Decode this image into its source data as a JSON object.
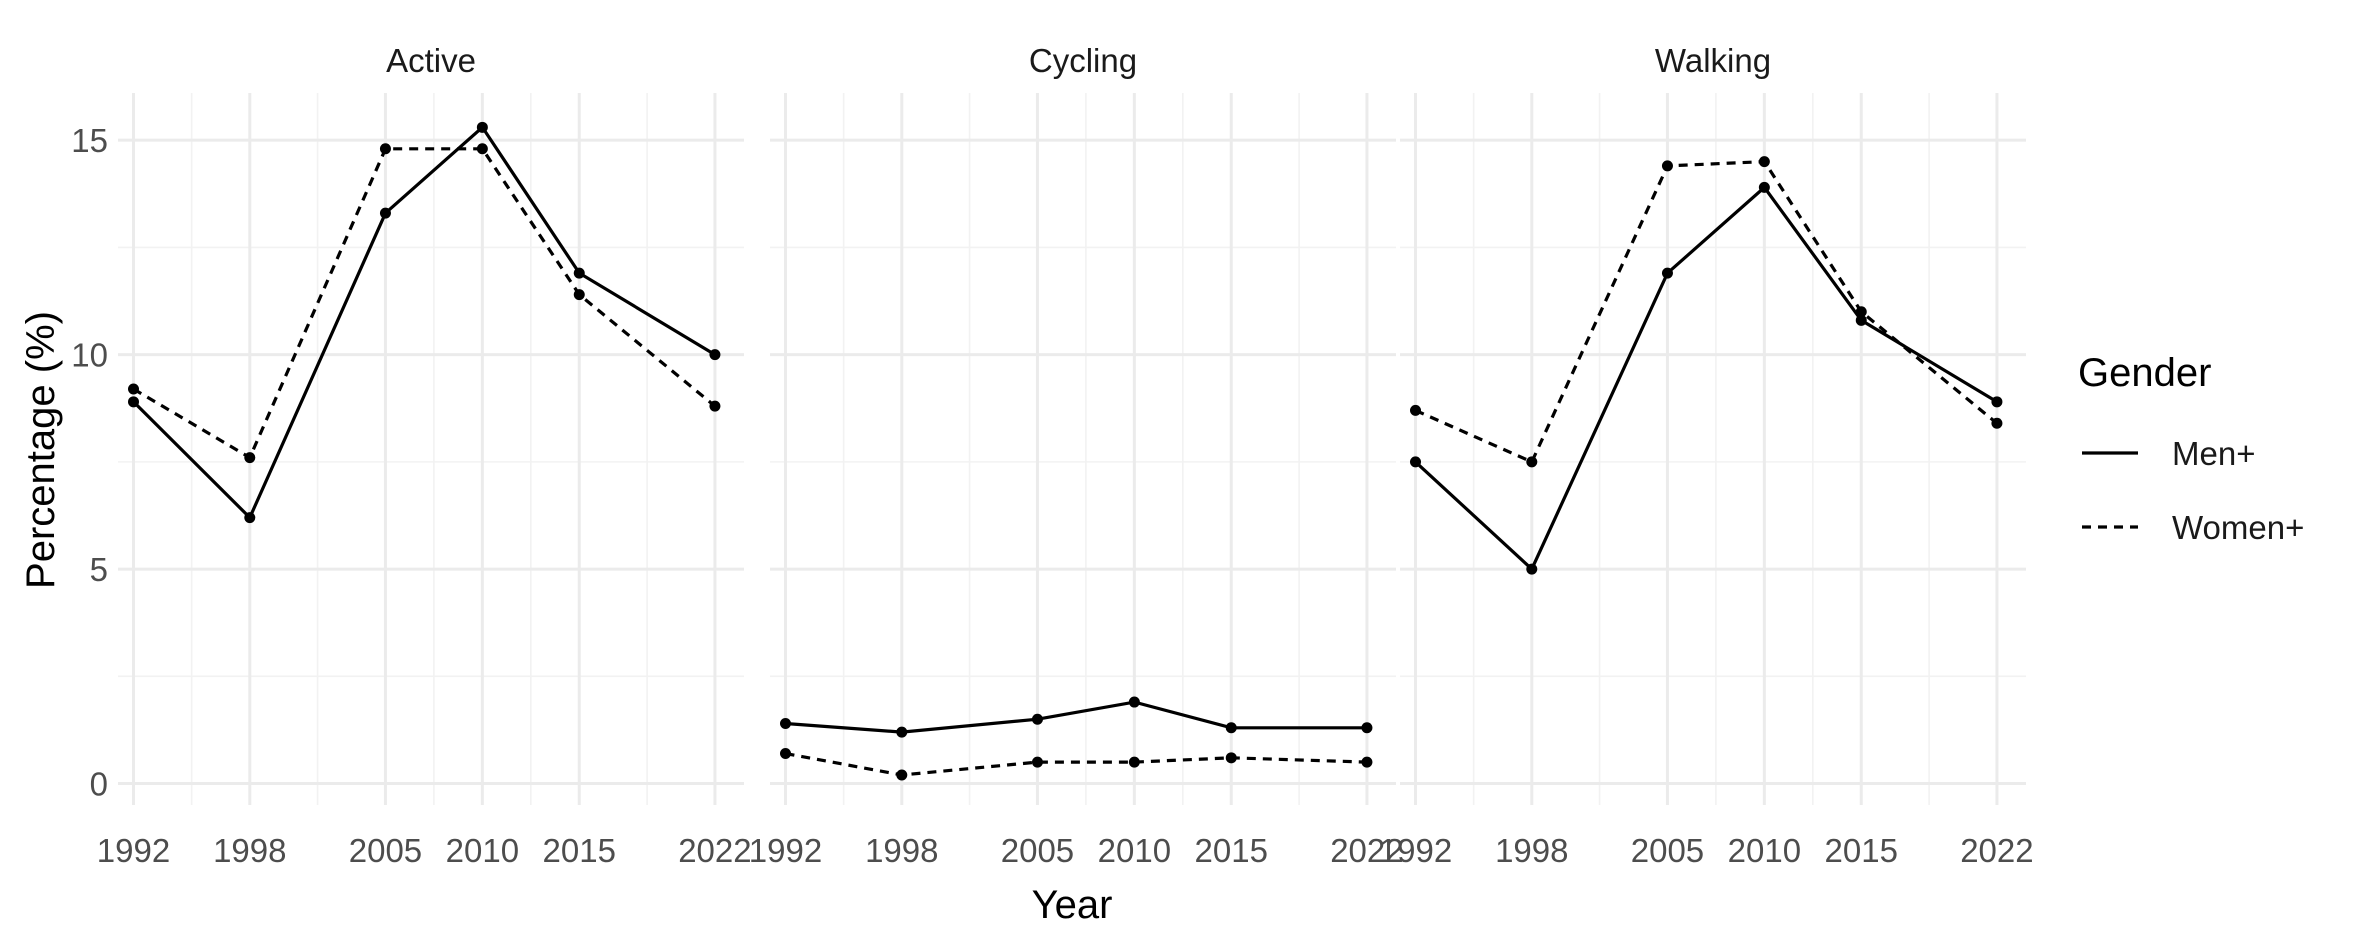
{
  "chart_data": {
    "type": "line",
    "xlabel": "Year",
    "ylabel": "Percentage (%)",
    "x_ticks": [
      1992,
      1998,
      2005,
      2010,
      2015,
      2022
    ],
    "y_ticks": [
      0,
      5,
      10,
      15
    ],
    "xlim": [
      1991.2,
      2023.5
    ],
    "ylim": [
      -0.5,
      16.1
    ],
    "grid": true,
    "legend": {
      "title": "Gender",
      "position": "right",
      "entries": [
        {
          "label": "Men+",
          "linetype": "solid"
        },
        {
          "label": "Women+",
          "linetype": "dashed"
        }
      ]
    },
    "facets": [
      {
        "label": "Active",
        "series": [
          {
            "name": "Men+",
            "linetype": "solid",
            "x": [
              1992,
              1998,
              2005,
              2010,
              2015,
              2022
            ],
            "y": [
              8.9,
              6.2,
              13.3,
              15.3,
              11.9,
              10.0
            ]
          },
          {
            "name": "Women+",
            "linetype": "dashed",
            "x": [
              1992,
              1998,
              2005,
              2010,
              2015,
              2022
            ],
            "y": [
              9.2,
              7.6,
              14.8,
              14.8,
              11.4,
              8.8
            ]
          }
        ]
      },
      {
        "label": "Cycling",
        "series": [
          {
            "name": "Men+",
            "linetype": "solid",
            "x": [
              1992,
              1998,
              2005,
              2010,
              2015,
              2022
            ],
            "y": [
              1.4,
              1.2,
              1.5,
              1.9,
              1.3,
              1.3
            ]
          },
          {
            "name": "Women+",
            "linetype": "dashed",
            "x": [
              1992,
              1998,
              2005,
              2010,
              2015,
              2022
            ],
            "y": [
              0.7,
              0.2,
              0.5,
              0.5,
              0.6,
              0.5
            ]
          }
        ]
      },
      {
        "label": "Walking",
        "series": [
          {
            "name": "Men+",
            "linetype": "solid",
            "x": [
              1992,
              1998,
              2005,
              2010,
              2015,
              2022
            ],
            "y": [
              7.5,
              5.0,
              11.9,
              13.9,
              10.8,
              8.9
            ]
          },
          {
            "name": "Women+",
            "linetype": "dashed",
            "x": [
              1992,
              1998,
              2005,
              2010,
              2015,
              2022
            ],
            "y": [
              8.7,
              7.5,
              14.4,
              14.5,
              11.0,
              8.4
            ]
          }
        ]
      }
    ]
  }
}
